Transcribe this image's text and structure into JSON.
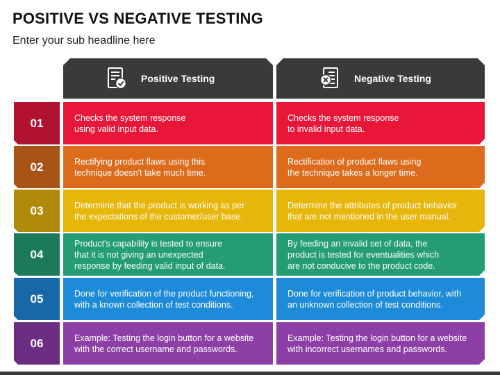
{
  "title": "POSITIVE VS NEGATIVE TESTING",
  "subtitle": "Enter your sub headline here",
  "columns": [
    {
      "label": "Positive Testing",
      "icon": "document-check-icon"
    },
    {
      "label": "Negative Testing",
      "icon": "document-cross-icon"
    }
  ],
  "rows": [
    {
      "num": "01",
      "color": "#E8173A",
      "numColor": "#B01230",
      "positive": "Checks the system response\nusing valid input data.",
      "negative": "Checks the system response\nto invalid input data."
    },
    {
      "num": "02",
      "color": "#DD6B1C",
      "numColor": "#A85416",
      "positive": "Rectifying product flaws using this\ntechnique doesn't take much time.",
      "negative": "Rectification of product flaws using\nthe technique takes a longer time."
    },
    {
      "num": "03",
      "color": "#E7B60A",
      "numColor": "#B08A0A",
      "positive": "Determine that the product is working as per\nthe expectations of the customer/user base.",
      "negative": "Determine the attributes of product behavior\nthat are not mentioned in the user manual."
    },
    {
      "num": "04",
      "color": "#249C74",
      "numColor": "#1C7A5B",
      "positive": "Product's capability is tested to ensure\nthat it is not giving an unexpected\nresponse by feeding valid input of data.",
      "negative": "By feeding an invalid set of data, the\nproduct is tested for eventualities which\nare not conducive to the product code."
    },
    {
      "num": "05",
      "color": "#1E8BD8",
      "numColor": "#1668A6",
      "positive": "Done for verification of the product functioning,\nwith a known collection of test conditions.",
      "negative": "Done for verification of product behavior, with\nan unknown collection of test conditions."
    },
    {
      "num": "06",
      "color": "#8D3FA6",
      "numColor": "#6C2E82",
      "positive": "Example: Testing the login button for a website\nwith the correct username and passwords.",
      "negative": "Example: Testing the login button for a website\nwith incorrect usernames and passwords."
    }
  ]
}
